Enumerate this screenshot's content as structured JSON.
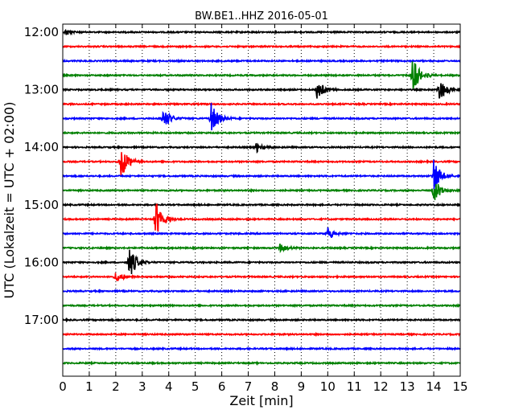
{
  "chart_data": {
    "type": "line",
    "title": "BW.BE1..HHZ 2016-05-01",
    "xlabel": "Zeit  [min]",
    "ylabel": "UTC (Lokalzeit = UTC + 02:00)",
    "xlim": [
      0,
      15
    ],
    "x_ticks": [
      "0",
      "1",
      "2",
      "3",
      "4",
      "5",
      "6",
      "7",
      "8",
      "9",
      "10",
      "11",
      "12",
      "13",
      "14",
      "15"
    ],
    "y_ticks": [
      "12:00",
      "13:00",
      "14:00",
      "15:00",
      "16:00",
      "17:00"
    ],
    "grid": "vertical dotted",
    "row_minutes": 15,
    "colors": [
      "#000000",
      "#ff0000",
      "#0000ff",
      "#008000"
    ],
    "rows": [
      {
        "start": "12:00",
        "color": "#000000",
        "events": [
          {
            "t": 0.1,
            "amp": 0.35
          }
        ]
      },
      {
        "start": "12:15",
        "color": "#ff0000",
        "events": []
      },
      {
        "start": "12:30",
        "color": "#0000ff",
        "events": []
      },
      {
        "start": "12:45",
        "color": "#008000",
        "events": [
          {
            "t": 13.2,
            "amp": 1.7
          }
        ]
      },
      {
        "start": "13:00",
        "color": "#000000",
        "events": [
          {
            "t": 9.6,
            "amp": 1.0
          },
          {
            "t": 14.2,
            "amp": 1.2
          }
        ]
      },
      {
        "start": "13:15",
        "color": "#ff0000",
        "events": []
      },
      {
        "start": "13:30",
        "color": "#0000ff",
        "events": [
          {
            "t": 3.8,
            "amp": 1.1
          },
          {
            "t": 5.6,
            "amp": 1.5
          }
        ]
      },
      {
        "start": "13:45",
        "color": "#008000",
        "events": []
      },
      {
        "start": "14:00",
        "color": "#000000",
        "events": [
          {
            "t": 7.3,
            "amp": 0.6
          }
        ]
      },
      {
        "start": "14:15",
        "color": "#ff0000",
        "events": [
          {
            "t": 2.2,
            "amp": 1.6
          }
        ]
      },
      {
        "start": "14:30",
        "color": "#0000ff",
        "events": [
          {
            "t": 14.0,
            "amp": 1.6
          }
        ]
      },
      {
        "start": "14:45",
        "color": "#008000",
        "events": [
          {
            "t": 14.0,
            "amp": 1.2
          }
        ]
      },
      {
        "start": "15:00",
        "color": "#000000",
        "events": []
      },
      {
        "start": "15:15",
        "color": "#ff0000",
        "events": [
          {
            "t": 3.5,
            "amp": 1.8
          }
        ]
      },
      {
        "start": "15:30",
        "color": "#0000ff",
        "events": [
          {
            "t": 10.0,
            "amp": 0.7
          }
        ]
      },
      {
        "start": "15:45",
        "color": "#008000",
        "events": [
          {
            "t": 8.2,
            "amp": 0.5
          }
        ]
      },
      {
        "start": "16:00",
        "color": "#000000",
        "events": [
          {
            "t": 2.5,
            "amp": 1.6
          }
        ]
      },
      {
        "start": "16:15",
        "color": "#ff0000",
        "events": [
          {
            "t": 2.0,
            "amp": 0.6
          }
        ]
      },
      {
        "start": "16:30",
        "color": "#0000ff",
        "events": []
      },
      {
        "start": "16:45",
        "color": "#008000",
        "events": []
      },
      {
        "start": "17:00",
        "color": "#000000",
        "events": []
      },
      {
        "start": "17:15",
        "color": "#ff0000",
        "events": []
      },
      {
        "start": "17:30",
        "color": "#0000ff",
        "events": []
      },
      {
        "start": "17:45",
        "color": "#008000",
        "events": []
      }
    ]
  }
}
